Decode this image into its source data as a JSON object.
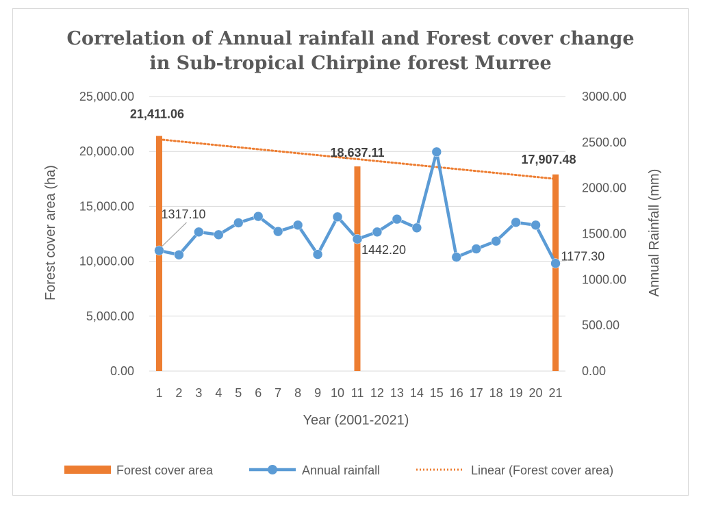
{
  "chart_data": {
    "type": "bar+line",
    "title_lines": [
      "Correlation of Annual rainfall and Forest cover change",
      "in Sub-tropical Chirpine forest Murree"
    ],
    "xlabel": "Year (2001-2021)",
    "ylabel_left": "Forest cover area (ha)",
    "ylabel_right": "Annual Rainfall (mm)",
    "categories": [
      "1",
      "2",
      "3",
      "4",
      "5",
      "6",
      "7",
      "8",
      "9",
      "10",
      "11",
      "12",
      "13",
      "14",
      "15",
      "16",
      "17",
      "18",
      "19",
      "20",
      "21"
    ],
    "ylim_left": [
      0,
      25000
    ],
    "ylim_right": [
      0,
      3000
    ],
    "left_ticks": [
      "0.00",
      "5,000.00",
      "10,000.00",
      "15,000.00",
      "20,000.00",
      "25,000.00"
    ],
    "right_ticks": [
      "0.00",
      "500.00",
      "1000.00",
      "1500.00",
      "2000.00",
      "2500.00",
      "3000.00"
    ],
    "gridlines": true,
    "series": [
      {
        "name": "Forest cover area",
        "type": "bar",
        "axis": "left",
        "color": "#ed7d31",
        "points": [
          {
            "x": "1",
            "value": 21411.06,
            "label": "21,411.06"
          },
          {
            "x": "11",
            "value": 18637.11,
            "label": "18,637.11"
          },
          {
            "x": "21",
            "value": 17907.48,
            "label": "17,907.48"
          }
        ]
      },
      {
        "name": "Annual rainfall",
        "type": "line",
        "axis": "right",
        "color": "#5b9bd5",
        "values": [
          1317.1,
          1270,
          1520,
          1490,
          1620,
          1690,
          1525,
          1595,
          1275,
          1685,
          1442.2,
          1520,
          1660,
          1565,
          2395,
          1245,
          1335,
          1420,
          1625,
          1595,
          1177.3
        ],
        "labels": [
          {
            "x": "1",
            "label": "1317.10"
          },
          {
            "x": "11",
            "label": "1442.20"
          },
          {
            "x": "21",
            "label": "1177.30"
          }
        ]
      },
      {
        "name": "Linear (Forest cover area)",
        "type": "trendline",
        "axis": "left",
        "color": "#ed7d31",
        "x_range": [
          "1",
          "21"
        ],
        "y_range": [
          21100,
          17500
        ]
      }
    ],
    "legend": {
      "position": "bottom",
      "entries": [
        "Forest cover area",
        "Annual rainfall",
        "Linear (Forest cover area)"
      ]
    }
  }
}
